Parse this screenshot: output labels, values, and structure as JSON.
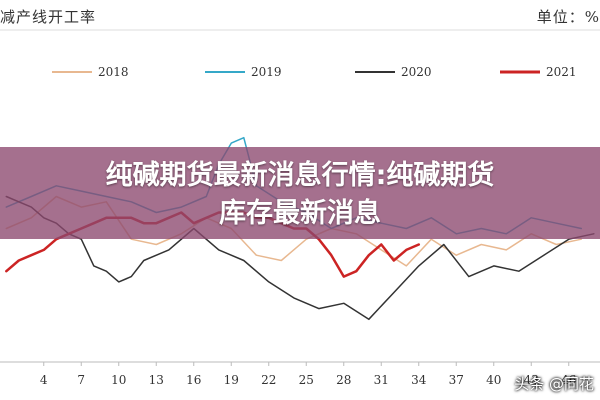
{
  "header": {
    "title": "减产线开工率",
    "unit": "单位：%"
  },
  "banner": {
    "headline_line1": "纯碱期货最新消息行情:纯碱期货",
    "headline_line2": "库存最新消息"
  },
  "watermark": {
    "text": "头条 @同花"
  },
  "chart_data": {
    "type": "line",
    "title": "",
    "xlabel": "",
    "ylabel": "",
    "grid": false,
    "legend_position": "top",
    "x_ticks": [
      4,
      7,
      10,
      13,
      16,
      19,
      22,
      25,
      28,
      31,
      34,
      37,
      40,
      43,
      46
    ],
    "xlim": [
      0.5,
      48.5
    ],
    "ylim": [
      55,
      105
    ],
    "series": [
      {
        "name": "2018",
        "color": "#e8b890",
        "width": 1.5,
        "x": [
          1,
          3,
          5,
          7,
          9,
          11,
          13,
          15,
          17,
          19,
          21,
          23,
          25,
          27,
          29,
          31,
          33,
          35,
          37,
          39,
          41,
          43,
          45,
          47
        ],
        "y": [
          80,
          82,
          86,
          84,
          85,
          78,
          77,
          79,
          82,
          80,
          75,
          74,
          78,
          80,
          79,
          76,
          73,
          78,
          75,
          77,
          76,
          79,
          77,
          78
        ]
      },
      {
        "name": "2019",
        "color": "#35a8c8",
        "width": 1.5,
        "x": [
          1,
          3,
          5,
          7,
          9,
          11,
          13,
          15,
          17,
          18,
          19,
          20,
          21,
          23,
          25,
          27,
          29,
          31,
          33,
          35,
          37,
          39,
          41,
          43,
          45,
          47
        ],
        "y": [
          84,
          86,
          88,
          87,
          86,
          85,
          83,
          84,
          86,
          92,
          96,
          97,
          88,
          85,
          83,
          80,
          82,
          81,
          80,
          82,
          79,
          80,
          79,
          82,
          81,
          80
        ]
      },
      {
        "name": "2020",
        "color": "#333333",
        "width": 1.5,
        "x": [
          1,
          2,
          3,
          4,
          5,
          6,
          7,
          8,
          9,
          10,
          11,
          12,
          14,
          16,
          18,
          20,
          22,
          24,
          26,
          28,
          30,
          32,
          34,
          36,
          38,
          40,
          42,
          44,
          46,
          48
        ],
        "y": [
          86,
          85,
          84,
          82,
          81,
          79,
          78,
          73,
          72,
          70,
          71,
          74,
          76,
          80,
          76,
          74,
          70,
          67,
          65,
          66,
          63,
          68,
          73,
          77,
          71,
          73,
          72,
          75,
          78,
          79
        ]
      },
      {
        "name": "2021",
        "color": "#cc2424",
        "width": 2.5,
        "x": [
          1,
          2,
          3,
          4,
          5,
          6,
          7,
          8,
          9,
          10,
          11,
          12,
          13,
          14,
          15,
          16,
          17,
          18,
          19,
          20,
          21,
          22,
          23,
          24,
          25,
          26,
          27,
          28,
          29,
          30,
          31,
          32,
          33,
          34
        ],
        "y": [
          72,
          74,
          75,
          76,
          78,
          79,
          80,
          81,
          82,
          82,
          82,
          81,
          81,
          82,
          83,
          81,
          82,
          83,
          83,
          83,
          82,
          82,
          81,
          80,
          80,
          78,
          75,
          71,
          72,
          75,
          77,
          74,
          76,
          77
        ]
      }
    ]
  }
}
